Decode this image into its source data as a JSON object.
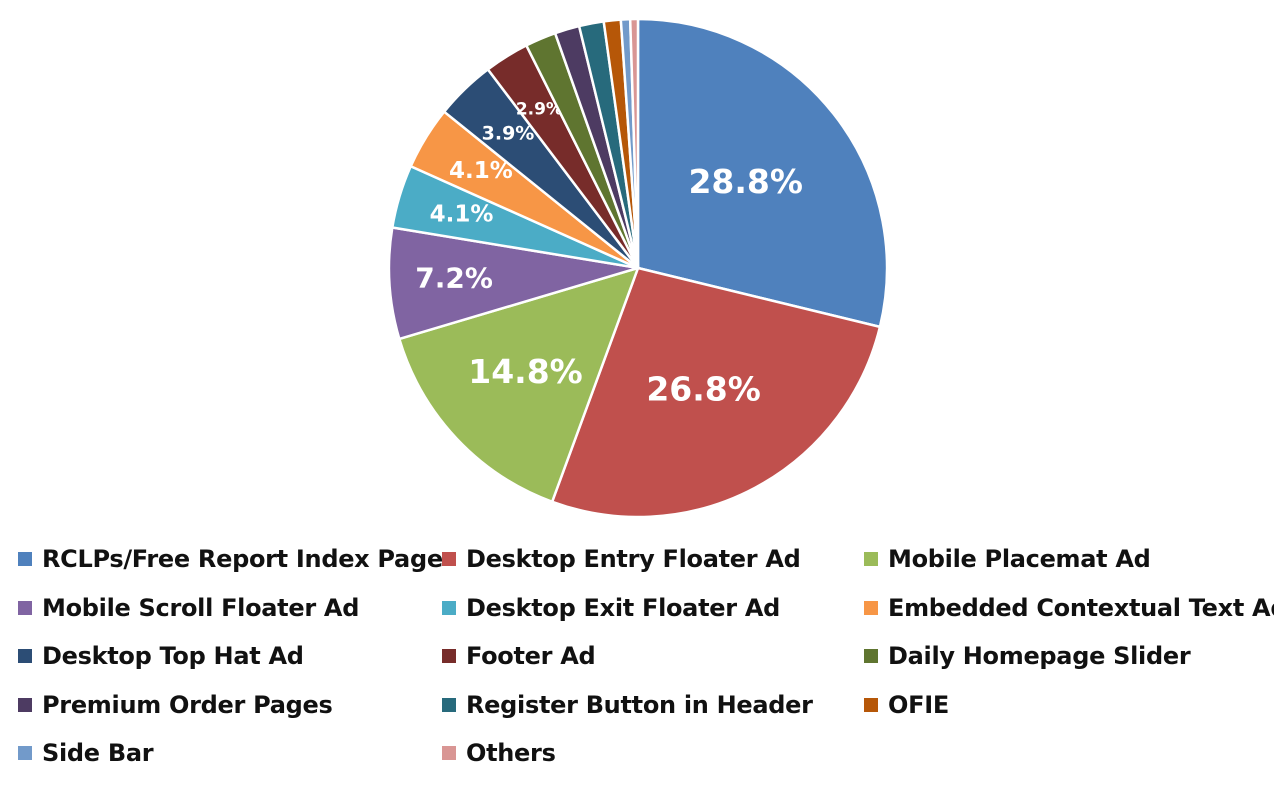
{
  "chart_data": {
    "type": "pie",
    "title": "",
    "legend_position": "bottom",
    "slices": [
      {
        "name": "RCLPs/Free Report Index Page",
        "value": 28.8,
        "label": "28.8%",
        "color": "#4F81BD"
      },
      {
        "name": "Desktop Entry Floater Ad",
        "value": 26.8,
        "label": "26.8%",
        "color": "#C0504D"
      },
      {
        "name": "Mobile Placemat Ad",
        "value": 14.8,
        "label": "14.8%",
        "color": "#9BBB59"
      },
      {
        "name": "Mobile Scroll Floater Ad",
        "value": 7.2,
        "label": "7.2%",
        "color": "#8064A2"
      },
      {
        "name": "Desktop Exit Floater Ad",
        "value": 4.1,
        "label": "4.1%",
        "color": "#4BACC6"
      },
      {
        "name": "Embedded Contextual Text Ad",
        "value": 4.1,
        "label": "4.1%",
        "color": "#F79646"
      },
      {
        "name": "Desktop Top Hat Ad",
        "value": 3.9,
        "label": "3.9%",
        "color": "#2C4D75"
      },
      {
        "name": "Footer Ad",
        "value": 2.9,
        "label": "2.9%",
        "color": "#772C2A"
      },
      {
        "name": "Daily Homepage Slider",
        "value": 2.0,
        "label": "",
        "color": "#5F7530"
      },
      {
        "name": "Premium Order Pages",
        "value": 1.6,
        "label": "",
        "color": "#4D3B62"
      },
      {
        "name": "Register Button in Header",
        "value": 1.6,
        "label": "",
        "color": "#276A7C"
      },
      {
        "name": "OFIE",
        "value": 1.1,
        "label": "",
        "color": "#B65708"
      },
      {
        "name": "Side Bar",
        "value": 0.6,
        "label": "",
        "color": "#729ACA"
      },
      {
        "name": "Others",
        "value": 0.5,
        "label": "",
        "color": "#D99694"
      }
    ]
  }
}
